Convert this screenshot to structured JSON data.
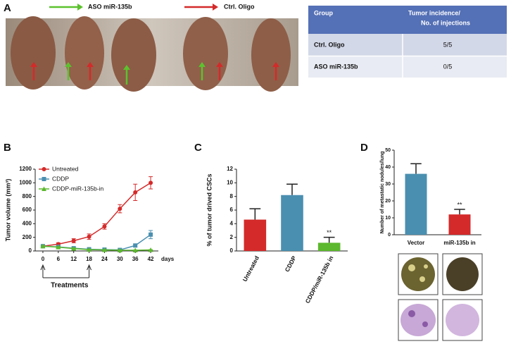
{
  "panels": [
    "A",
    "B",
    "C",
    "D"
  ],
  "photo_legend": [
    {
      "label": "ASO miR-135b",
      "color": "#5cc22e"
    },
    {
      "label": "Ctrl. Oligo",
      "color": "#d42a2a"
    }
  ],
  "table": {
    "header": [
      "Group",
      [
        "Tumor incidence/",
        "No. of injections"
      ]
    ],
    "rows": [
      [
        "Ctrl. Oligo",
        "5/5"
      ],
      [
        "ASO miR-135b",
        "0/5"
      ]
    ]
  },
  "chart_data": [
    {
      "type": "line",
      "ylabel": "Tumor volume (mm³)",
      "xlabel": "days",
      "annotation": "Treatments",
      "x": [
        0,
        6,
        12,
        18,
        24,
        30,
        36,
        42
      ],
      "xlim": [
        -3,
        45
      ],
      "xticks": [
        0,
        6,
        12,
        18,
        24,
        30,
        36,
        42
      ],
      "ylim": [
        0,
        1200
      ],
      "yticks": [
        0,
        200,
        400,
        600,
        800,
        1000,
        1200
      ],
      "series": [
        {
          "name": "Untreated",
          "color": "#d42a2a",
          "marker": "circle",
          "values": [
            70,
            100,
            150,
            210,
            360,
            620,
            860,
            1000
          ],
          "error": [
            15,
            20,
            30,
            40,
            40,
            60,
            120,
            90
          ]
        },
        {
          "name": "CDDP",
          "color": "#4a8fb0",
          "marker": "square",
          "values": [
            70,
            60,
            40,
            25,
            20,
            15,
            80,
            240
          ],
          "error": [
            10,
            10,
            10,
            5,
            5,
            5,
            20,
            60
          ]
        },
        {
          "name": "CDDP-miR-135b-in",
          "color": "#5cb82e",
          "marker": "triangle",
          "values": [
            70,
            55,
            35,
            20,
            15,
            10,
            10,
            15
          ],
          "error": [
            10,
            10,
            10,
            5,
            5,
            5,
            5,
            5
          ]
        }
      ]
    },
    {
      "type": "bar",
      "ylabel": "% of tumor drived CSCs",
      "categories": [
        "Untreated",
        "CDDP",
        "CDDP/miR-135b in"
      ],
      "values": [
        4.6,
        8.2,
        1.2
      ],
      "error": [
        1.6,
        1.6,
        0.8
      ],
      "colors": [
        "#d42a2a",
        "#4a8fb0",
        "#5cb82e"
      ],
      "ylim": [
        0,
        12
      ],
      "yticks": [
        0,
        2,
        4,
        6,
        8,
        10,
        12
      ],
      "annotations": [
        {
          "text": "**",
          "category": "CDDP/miR-135b in"
        }
      ]
    },
    {
      "type": "bar",
      "ylabel": "Number of metastatic nodules/lung",
      "categories": [
        "Vector",
        "miR-135b in"
      ],
      "values": [
        36,
        12
      ],
      "error": [
        6,
        3
      ],
      "colors": [
        "#4a8fb0",
        "#d42a2a"
      ],
      "ylim": [
        0,
        50
      ],
      "yticks": [
        0,
        10,
        20,
        30,
        40,
        50
      ],
      "annotations": [
        {
          "text": "**",
          "category": "miR-135b in"
        }
      ]
    }
  ]
}
